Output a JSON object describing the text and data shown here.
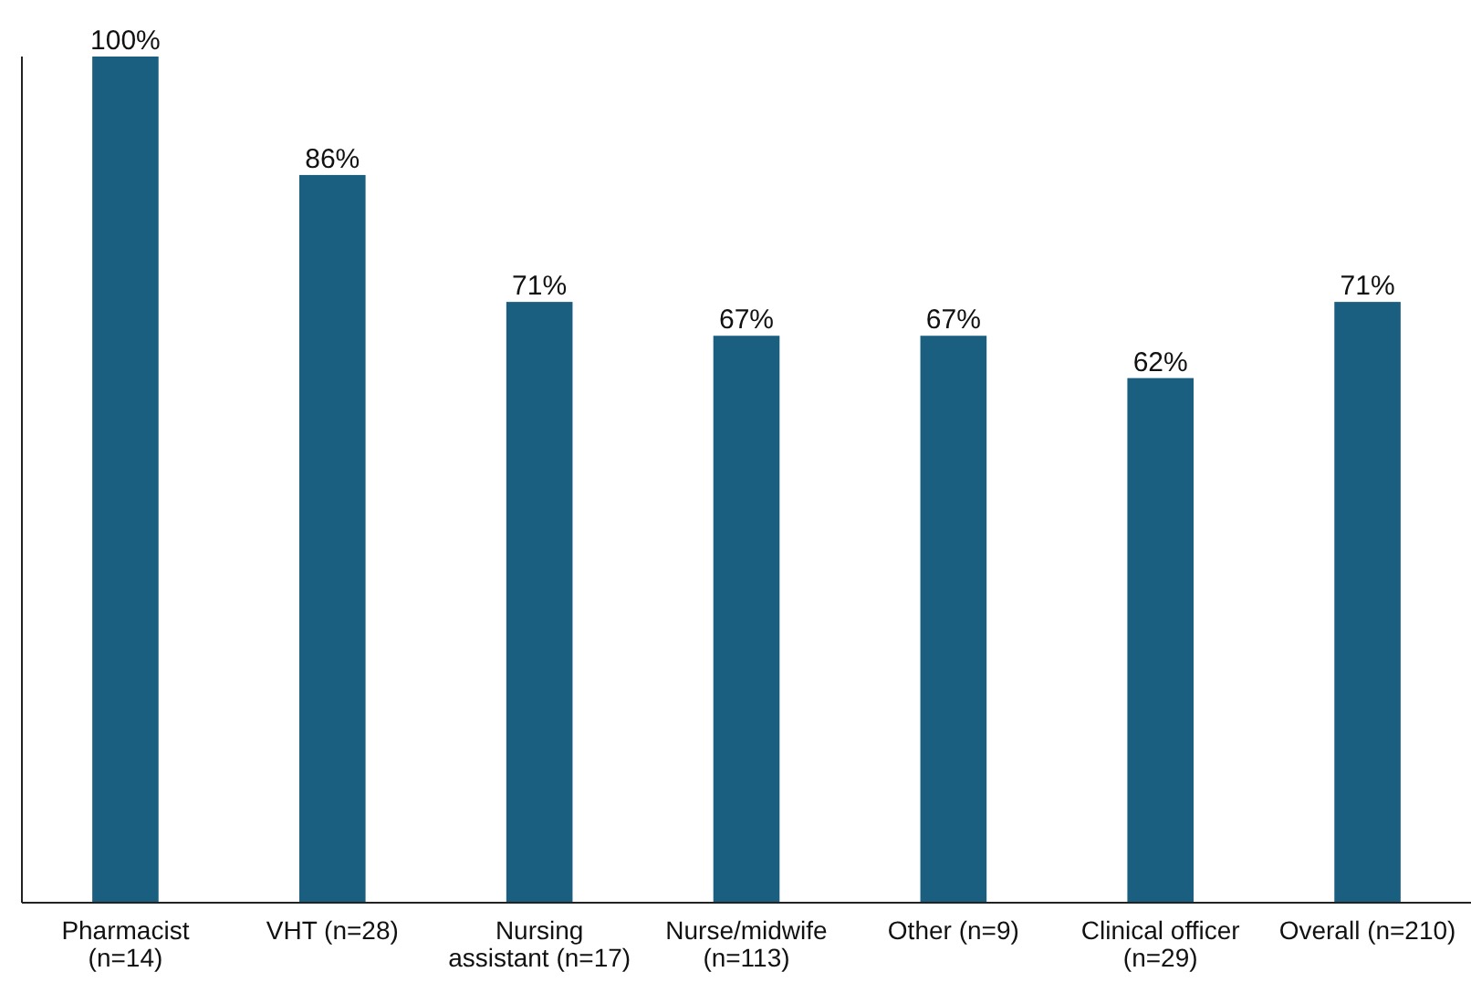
{
  "chart_data": {
    "type": "bar",
    "categories": [
      "Pharmacist (n=14)",
      "VHT (n=28)",
      "Nursing assistant (n=17)",
      "Nurse/midwife (n=113)",
      "Other (n=9)",
      "Clinical officer (n=29)",
      "Overall (n=210)"
    ],
    "values": [
      100,
      86,
      71,
      67,
      67,
      62,
      71
    ],
    "value_labels": [
      "100%",
      "86%",
      "71%",
      "67%",
      "67%",
      "62%",
      "71%"
    ],
    "color": "#1a5e80",
    "ylim": [
      0,
      100
    ],
    "tick_labels": "x"
  }
}
